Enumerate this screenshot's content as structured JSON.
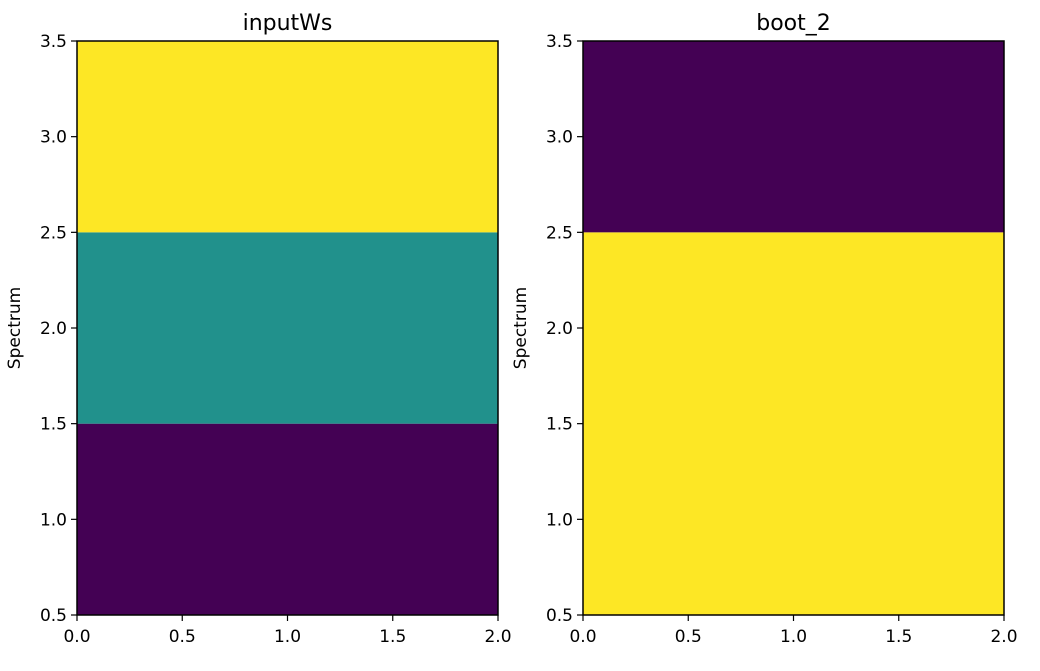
{
  "chart_data": [
    {
      "type": "heatmap",
      "title": "inputWs",
      "xlabel": "",
      "ylabel": "Spectrum",
      "xlim": [
        0.0,
        2.0
      ],
      "ylim": [
        0.5,
        3.5
      ],
      "xticks": [
        "0.0",
        "0.5",
        "1.0",
        "1.5",
        "2.0"
      ],
      "yticks": [
        "0.5",
        "1.0",
        "1.5",
        "2.0",
        "2.5",
        "3.0",
        "3.5"
      ],
      "xtick_values": [
        0.0,
        0.5,
        1.0,
        1.5,
        2.0
      ],
      "ytick_values": [
        0.5,
        1.0,
        1.5,
        2.0,
        2.5,
        3.0,
        3.5
      ],
      "colormap": "viridis",
      "cells": [
        {
          "x0": 0.0,
          "x1": 2.0,
          "y0": 0.5,
          "y1": 1.5,
          "value": 0.0,
          "color": "#440154"
        },
        {
          "x0": 0.0,
          "x1": 2.0,
          "y0": 1.5,
          "y1": 2.5,
          "value": 0.5,
          "color": "#21918c"
        },
        {
          "x0": 0.0,
          "x1": 2.0,
          "y0": 2.5,
          "y1": 3.5,
          "value": 1.0,
          "color": "#fde725"
        }
      ],
      "grid": false
    },
    {
      "type": "heatmap",
      "title": "boot_2",
      "xlabel": "",
      "ylabel": "Spectrum",
      "xlim": [
        0.0,
        2.0
      ],
      "ylim": [
        0.5,
        3.5
      ],
      "xticks": [
        "0.0",
        "0.5",
        "1.0",
        "1.5",
        "2.0"
      ],
      "yticks": [
        "0.5",
        "1.0",
        "1.5",
        "2.0",
        "2.5",
        "3.0",
        "3.5"
      ],
      "xtick_values": [
        0.0,
        0.5,
        1.0,
        1.5,
        2.0
      ],
      "ytick_values": [
        0.5,
        1.0,
        1.5,
        2.0,
        2.5,
        3.0,
        3.5
      ],
      "colormap": "viridis",
      "cells": [
        {
          "x0": 0.0,
          "x1": 2.0,
          "y0": 0.5,
          "y1": 2.5,
          "value": 1.0,
          "color": "#fde725"
        },
        {
          "x0": 0.0,
          "x1": 2.0,
          "y0": 2.5,
          "y1": 3.5,
          "value": 0.0,
          "color": "#440154"
        }
      ],
      "grid": false
    }
  ]
}
